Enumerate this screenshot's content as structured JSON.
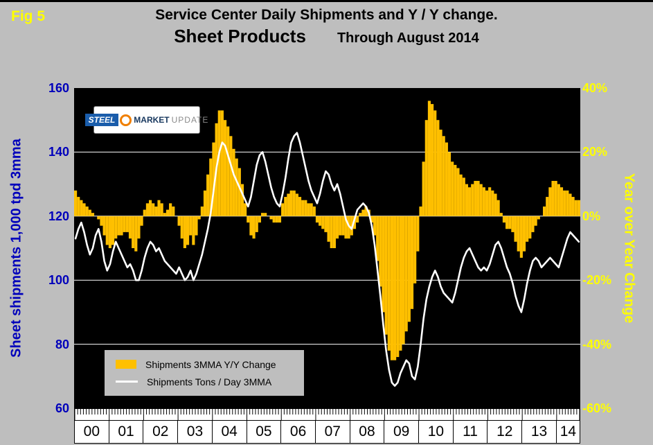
{
  "page": {
    "fig_label": "Fig 5",
    "title_line1": "Service Center Daily Shipments and Y / Y change.",
    "title_line2_main": "Sheet Products",
    "title_line2_sub": "Through August 2014"
  },
  "logo": {
    "part1": "STEEL",
    "part2": "MARKET",
    "part3": "UPDATE"
  },
  "chart_data": {
    "type": "combo-bar-line",
    "x_frequency": "monthly",
    "x_start": "2000-01",
    "x_end": "2014-08",
    "year_labels": [
      "00",
      "01",
      "02",
      "03",
      "04",
      "05",
      "06",
      "07",
      "08",
      "09",
      "10",
      "11",
      "12",
      "13",
      "14"
    ],
    "last_year_months": 8,
    "bar_baseline_left_value": 120,
    "left_axis": {
      "label": "Sheet shipments 1,000 tpd 3mma",
      "min": 60,
      "max": 160,
      "ticks": [
        160,
        140,
        120,
        100,
        80,
        60
      ],
      "grid": [
        140,
        120,
        100,
        80
      ],
      "color": "#0000BB"
    },
    "right_axis": {
      "label": "Year over Year Change",
      "min": -60,
      "max": 40,
      "ticks": [
        "40%",
        "20%",
        "0%",
        "-20%",
        "-40%",
        "-60%"
      ],
      "color": "#FFFF00"
    },
    "colors": {
      "plot_bg": "#000000",
      "page_bg": "#BEBEBE",
      "gridline": "#FFFFFF"
    },
    "series": [
      {
        "name": "Shipments 3MMA Y/Y Change",
        "type": "bar",
        "axis": "right",
        "unit": "percent",
        "color": "#FFC000",
        "values": [
          8,
          6,
          5,
          4,
          3,
          2,
          1,
          0,
          -1,
          -3,
          -6,
          -9,
          -10,
          -9,
          -7,
          -6,
          -6,
          -5,
          -5,
          -7,
          -10,
          -11,
          -7,
          -3,
          2,
          4,
          5,
          4,
          3,
          5,
          4,
          1,
          2,
          4,
          3,
          0,
          -3,
          -7,
          -10,
          -9,
          -6,
          -9,
          -6,
          -1,
          3,
          8,
          13,
          18,
          23,
          29,
          33,
          33,
          30,
          28,
          25,
          21,
          18,
          15,
          10,
          4,
          -2,
          -6,
          -7,
          -5,
          -2,
          1,
          1,
          0,
          -1,
          -2,
          -2,
          -2,
          4,
          6,
          7,
          8,
          8,
          7,
          6,
          5,
          5,
          4,
          4,
          3,
          -2,
          -3,
          -4,
          -5,
          -8,
          -10,
          -10,
          -7,
          -6,
          -6,
          -7,
          -7,
          -6,
          -4,
          -2,
          1,
          2,
          3,
          2,
          -2,
          -6,
          -14,
          -22,
          -30,
          -37,
          -42,
          -45,
          -45,
          -44,
          -42,
          -40,
          -36,
          -33,
          -29,
          -21,
          -11,
          3,
          17,
          30,
          36,
          35,
          33,
          30,
          27,
          25,
          23,
          20,
          17,
          16,
          15,
          13,
          12,
          10,
          9,
          10,
          11,
          11,
          10,
          9,
          8,
          9,
          8,
          7,
          5,
          1,
          -2,
          -4,
          -4,
          -5,
          -8,
          -11,
          -13,
          -11,
          -8,
          -7,
          -5,
          -3,
          -1,
          0,
          3,
          6,
          9,
          11,
          11,
          10,
          9,
          8,
          8,
          7,
          6,
          5,
          5
        ]
      },
      {
        "name": "Shipments Tons / Day 3MMA",
        "type": "line",
        "axis": "left",
        "unit": "1,000 tons per day",
        "color": "#FFFFFF",
        "values": [
          113,
          116,
          118,
          115,
          111,
          108,
          110,
          114,
          116,
          112,
          106,
          103,
          105,
          109,
          112,
          110,
          108,
          106,
          104,
          105,
          103,
          100,
          100,
          103,
          107,
          110,
          112,
          111,
          109,
          110,
          108,
          106,
          105,
          104,
          103,
          102,
          104,
          102,
          100,
          101,
          103,
          100,
          102,
          105,
          108,
          112,
          116,
          121,
          128,
          135,
          140,
          143,
          142,
          139,
          136,
          133,
          131,
          129,
          127,
          125,
          123,
          126,
          131,
          136,
          139,
          140,
          137,
          133,
          129,
          126,
          124,
          123,
          127,
          132,
          138,
          143,
          145,
          146,
          143,
          139,
          135,
          131,
          128,
          126,
          124,
          127,
          131,
          134,
          133,
          130,
          128,
          130,
          127,
          123,
          119,
          117,
          116,
          119,
          122,
          123,
          124,
          123,
          121,
          117,
          111,
          103,
          95,
          86,
          78,
          72,
          68,
          67,
          68,
          71,
          73,
          75,
          74,
          70,
          69,
          73,
          80,
          88,
          94,
          98,
          101,
          103,
          101,
          98,
          96,
          95,
          94,
          93,
          96,
          100,
          104,
          107,
          109,
          110,
          108,
          106,
          104,
          103,
          104,
          103,
          105,
          108,
          111,
          112,
          110,
          107,
          104,
          102,
          99,
          95,
          92,
          90,
          94,
          99,
          103,
          106,
          107,
          106,
          104,
          105,
          106,
          107,
          106,
          105,
          104,
          107,
          110,
          113,
          115,
          114,
          113,
          112
        ]
      }
    ]
  }
}
